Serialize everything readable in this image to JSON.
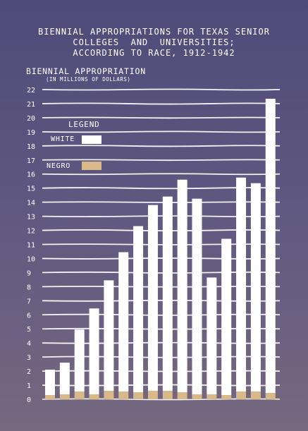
{
  "title_lines": [
    "BIENNIAL APPROPRIATIONS FOR TEXAS SENIOR",
    "COLLEGES  AND  UNIVERSITIES;",
    "ACCORDING TO RACE, 1912-1942"
  ],
  "chart_data": {
    "type": "bar",
    "title": "BIENNIAL APPROPRIATIONS FOR TEXAS SENIOR COLLEGES AND UNIVERSITIES; ACCORDING TO RACE, 1912-1942",
    "ylabel": "BIENNIAL APPROPRIATION",
    "yunit": "(IN MILLIONS OF DOLLARS)",
    "ylim": [
      0,
      22
    ],
    "yticks": [
      0,
      1,
      2,
      3,
      4,
      5,
      6,
      7,
      8,
      9,
      10,
      11,
      12,
      13,
      14,
      15,
      16,
      17,
      18,
      19,
      20,
      21,
      22
    ],
    "grid": true,
    "stacked": true,
    "legend_title": "LEGEND",
    "legend_position": "top-left",
    "series": [
      {
        "name": "WHITE",
        "color": "#ffffff",
        "values": [
          1.8,
          2.25,
          4.4,
          6.1,
          7.85,
          9.9,
          11.8,
          13.2,
          13.8,
          15.1,
          13.9,
          8.3,
          11.1,
          15.2,
          14.8,
          20.9
        ]
      },
      {
        "name": "NEGRO",
        "color": "#d9b98a",
        "values": [
          0.3,
          0.35,
          0.55,
          0.35,
          0.6,
          0.55,
          0.5,
          0.6,
          0.6,
          0.5,
          0.35,
          0.35,
          0.3,
          0.55,
          0.55,
          0.45
        ]
      }
    ]
  }
}
